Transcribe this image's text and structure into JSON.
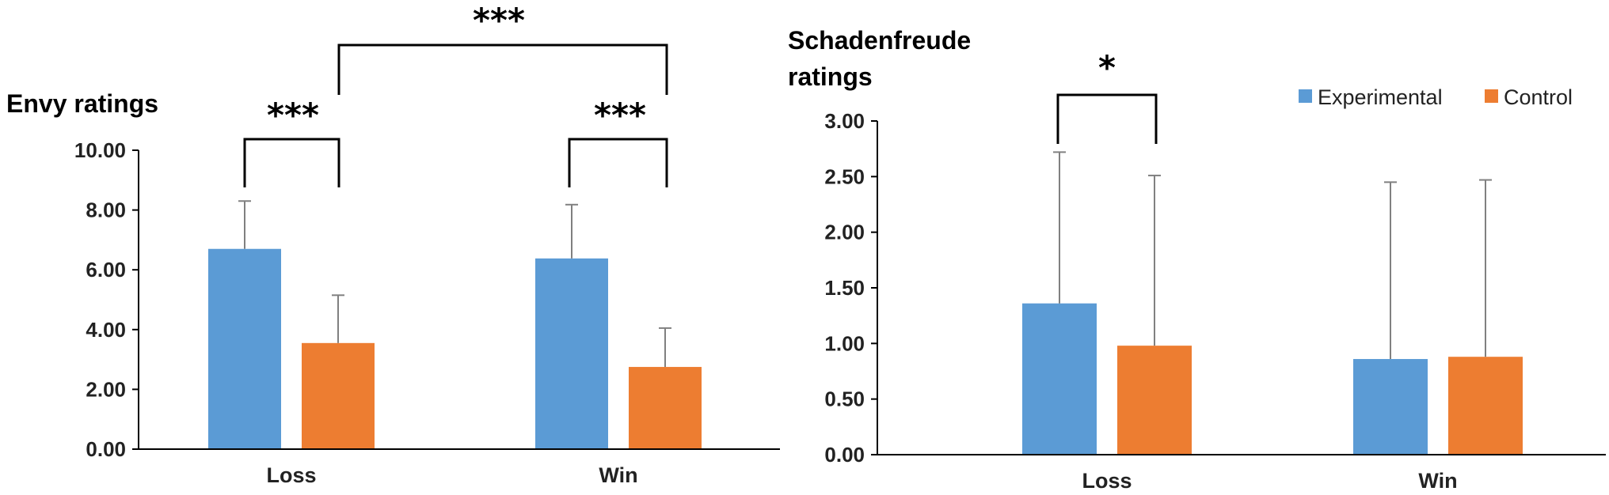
{
  "chart_data": [
    {
      "type": "bar",
      "ylabel": "Envy ratings",
      "categories": [
        "Loss",
        "Win"
      ],
      "ylim": [
        0,
        10
      ],
      "yticks": [
        "0.00",
        "2.00",
        "4.00",
        "6.00",
        "8.00",
        "10.00"
      ],
      "series": [
        {
          "name": "Experimental",
          "color": "#5B9BD5",
          "values": [
            6.7,
            6.38
          ],
          "errors": [
            1.6,
            1.8
          ]
        },
        {
          "name": "Control",
          "color": "#ED7D31",
          "values": [
            3.55,
            2.75
          ],
          "errors": [
            1.6,
            1.3
          ]
        }
      ],
      "significance": [
        {
          "label": "***",
          "between": "Loss: Experimental vs Control"
        },
        {
          "label": "***",
          "between": "Win: Experimental vs Control"
        },
        {
          "label": "***",
          "between": "Loss Control vs Win Control"
        }
      ],
      "legend": false
    },
    {
      "type": "bar",
      "ylabel": "Schadenfreude ratings",
      "ylabel_lines": [
        "Schadenfreude",
        "ratings"
      ],
      "categories": [
        "Loss",
        "Win"
      ],
      "ylim": [
        0,
        3
      ],
      "yticks": [
        "0.00",
        "0.50",
        "1.00",
        "1.50",
        "2.00",
        "2.50",
        "3.00"
      ],
      "series": [
        {
          "name": "Experimental",
          "color": "#5B9BD5",
          "values": [
            1.36,
            0.86
          ],
          "errors": [
            1.36,
            1.59
          ]
        },
        {
          "name": "Control",
          "color": "#ED7D31",
          "values": [
            0.98,
            0.88
          ],
          "errors": [
            1.53,
            1.59
          ]
        }
      ],
      "significance": [
        {
          "label": "*",
          "between": "Loss: Experimental vs Control"
        }
      ],
      "legend": "top-right"
    }
  ]
}
